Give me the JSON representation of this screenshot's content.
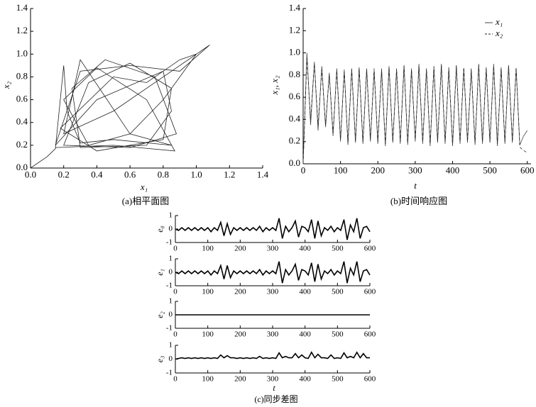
{
  "chart_data": [
    {
      "type": "line",
      "title": "(a)相平面图",
      "xlabel": "x₁",
      "ylabel": "x₂",
      "xlim": [
        0,
        1.4
      ],
      "ylim": [
        0,
        1.4
      ],
      "xticks": [
        {
          "value": 0,
          "label": "0.0"
        },
        0.2,
        0.4,
        0.6,
        0.8,
        {
          "value": 1,
          "label": "1.0"
        },
        1.2,
        1.4
      ],
      "yticks": [
        {
          "value": 0,
          "label": "0.0"
        },
        0.2,
        0.4,
        0.6,
        0.8,
        {
          "value": 1,
          "label": "1.0"
        },
        1.2,
        1.4
      ],
      "color": "#222",
      "x": [
        0,
        0.1,
        0.15,
        0.2,
        0.22,
        0.3,
        0.5,
        0.85,
        0.6,
        0.3,
        0.2,
        0.5,
        0.9,
        1.08,
        0.9,
        0.6,
        0.3,
        0.15,
        0.4,
        0.8,
        0.85,
        0.7,
        0.3,
        0.25,
        0.45,
        0.75,
        0.88,
        0.6,
        0.2,
        0.35,
        0.6,
        0.85,
        0.8,
        0.4,
        0.18,
        0.5,
        0.7,
        0.9,
        1.0,
        0.8,
        0.6,
        0.35,
        0.2,
        0.4,
        0.7,
        0.87,
        0.5,
        0.15
      ],
      "values": [
        0,
        0.1,
        0.17,
        0.9,
        0.5,
        0.22,
        0.25,
        0.2,
        0.3,
        0.95,
        0.3,
        0.5,
        0.9,
        1.08,
        0.85,
        0.9,
        0.85,
        0.2,
        0.6,
        0.85,
        0.5,
        0.2,
        0.18,
        0.7,
        0.95,
        0.8,
        0.3,
        0.18,
        0.2,
        0.75,
        0.92,
        0.7,
        0.25,
        0.15,
        0.35,
        0.8,
        0.75,
        0.95,
        1.0,
        0.6,
        0.3,
        0.2,
        0.6,
        0.88,
        0.6,
        0.15,
        0.2,
        0.18
      ]
    },
    {
      "type": "line",
      "title": "(b)时间响应图",
      "xlabel": "t",
      "ylabel": "x₁, x₂",
      "xlim": [
        0,
        610
      ],
      "ylim": [
        0,
        1.4
      ],
      "xticks": [
        0,
        100,
        200,
        300,
        400,
        500,
        600
      ],
      "yticks": [
        {
          "value": 0,
          "label": "0.0"
        },
        0.2,
        0.4,
        0.6,
        0.8,
        {
          "value": 1,
          "label": "1.0"
        },
        1.2,
        1.4
      ],
      "x": [
        0,
        10,
        20,
        30,
        40,
        50,
        60,
        70,
        80,
        90,
        100,
        110,
        120,
        130,
        140,
        150,
        160,
        170,
        180,
        190,
        200,
        210,
        220,
        230,
        240,
        250,
        260,
        270,
        280,
        290,
        300,
        310,
        320,
        330,
        340,
        350,
        360,
        370,
        380,
        390,
        400,
        410,
        420,
        430,
        440,
        450,
        460,
        470,
        480,
        490,
        500,
        510,
        520,
        530,
        540,
        550,
        560,
        570,
        580,
        590,
        600
      ],
      "series": [
        {
          "name": "x₁",
          "color": "#444",
          "linestyle": "solid",
          "values": [
            0,
            1.0,
            0.35,
            0.92,
            0.3,
            0.88,
            0.33,
            0.82,
            0.25,
            0.86,
            0.2,
            0.85,
            0.17,
            0.86,
            0.19,
            0.87,
            0.18,
            0.86,
            0.2,
            0.84,
            0.18,
            0.86,
            0.16,
            0.88,
            0.19,
            0.85,
            0.18,
            0.89,
            0.17,
            0.86,
            0.2,
            0.9,
            0.18,
            0.85,
            0.16,
            0.87,
            0.19,
            0.9,
            0.18,
            0.86,
            0.16,
            0.89,
            0.18,
            0.86,
            0.19,
            0.85,
            0.17,
            0.9,
            0.18,
            0.86,
            0.19,
            0.9,
            0.16,
            0.87,
            0.18,
            0.89,
            0.19,
            0.86,
            0.17,
            0.25,
            0.3
          ]
        },
        {
          "name": "x₂",
          "color": "#222",
          "linestyle": "dashed",
          "values": [
            0,
            0.95,
            0.4,
            0.9,
            0.35,
            0.85,
            0.35,
            0.8,
            0.28,
            0.84,
            0.22,
            0.83,
            0.19,
            0.85,
            0.2,
            0.86,
            0.2,
            0.85,
            0.22,
            0.86,
            0.2,
            0.84,
            0.18,
            0.87,
            0.2,
            0.86,
            0.2,
            0.88,
            0.19,
            0.85,
            0.22,
            0.88,
            0.2,
            0.86,
            0.18,
            0.88,
            0.2,
            0.89,
            0.2,
            0.87,
            0.18,
            0.88,
            0.2,
            0.87,
            0.2,
            0.86,
            0.19,
            0.89,
            0.2,
            0.87,
            0.2,
            0.88,
            0.18,
            0.86,
            0.2,
            0.88,
            0.2,
            0.87,
            0.15,
            0.12,
            0.1
          ]
        }
      ]
    },
    {
      "type": "line",
      "title": "(c)同步差图",
      "xlabel": "t",
      "xlim": [
        0,
        600
      ],
      "xticks": [
        0,
        100,
        200,
        300,
        400,
        500,
        600
      ],
      "x": [
        0,
        10,
        20,
        30,
        40,
        50,
        60,
        70,
        80,
        90,
        100,
        110,
        120,
        130,
        140,
        150,
        160,
        170,
        180,
        190,
        200,
        210,
        220,
        230,
        240,
        250,
        260,
        270,
        280,
        290,
        300,
        310,
        320,
        330,
        340,
        350,
        360,
        370,
        380,
        390,
        400,
        410,
        420,
        430,
        440,
        450,
        460,
        470,
        480,
        490,
        500,
        510,
        520,
        530,
        540,
        550,
        560,
        570,
        580,
        590,
        600
      ],
      "subplots": [
        {
          "ylabel": "e₀",
          "ylim": [
            -1,
            1
          ],
          "yticks": [
            -1,
            0,
            1
          ],
          "color": "#000",
          "values": [
            0,
            -0.1,
            0.1,
            -0.1,
            0.1,
            -0.1,
            0.1,
            -0.1,
            0.1,
            -0.1,
            0.1,
            -0.2,
            0.1,
            -0.1,
            0.5,
            -0.5,
            0.4,
            -0.4,
            0.1,
            -0.1,
            0.1,
            -0.1,
            0.1,
            -0.1,
            0.1,
            -0.1,
            0.2,
            -0.2,
            0.1,
            -0.1,
            0.1,
            -0.1,
            0.8,
            -0.7,
            0.2,
            -0.2,
            0.1,
            0.6,
            -0.6,
            0.2,
            0.1,
            -0.2,
            0.7,
            -0.7,
            0.6,
            -0.5,
            0.1,
            -0.1,
            0.2,
            -0.2,
            0.1,
            -0.1,
            0.7,
            -0.8,
            0.3,
            -0.2,
            0.8,
            -0.7,
            0.1,
            0.2,
            -0.2
          ]
        },
        {
          "ylabel": "e₁",
          "ylim": [
            -1,
            1
          ],
          "yticks": [
            -1,
            0,
            1
          ],
          "color": "#000",
          "values": [
            0,
            -0.1,
            0.1,
            -0.1,
            0.1,
            -0.1,
            0.1,
            -0.1,
            0.1,
            -0.1,
            0.1,
            -0.2,
            0.1,
            -0.1,
            0.5,
            -0.5,
            0.5,
            -0.4,
            0.1,
            -0.1,
            0.1,
            -0.1,
            0.1,
            -0.1,
            0.1,
            -0.1,
            0.2,
            -0.2,
            0.1,
            -0.1,
            0.1,
            -0.1,
            0.8,
            -0.8,
            0.2,
            -0.2,
            0.1,
            0.6,
            -0.6,
            0.2,
            0.1,
            -0.2,
            0.7,
            -0.7,
            0.6,
            -0.5,
            0.1,
            -0.1,
            0.2,
            -0.2,
            0.1,
            -0.1,
            0.8,
            -0.8,
            0.3,
            -0.2,
            0.8,
            -0.7,
            0.1,
            0.2,
            -0.2
          ]
        },
        {
          "ylabel": "e₂",
          "ylim": [
            -1,
            1
          ],
          "yticks": [
            -1,
            0,
            1
          ],
          "color": "#000",
          "values": [
            0,
            0,
            0,
            0,
            0,
            0,
            0,
            0,
            0,
            0,
            0,
            0,
            0,
            0,
            0,
            0,
            0,
            0,
            0,
            0,
            0,
            0,
            0,
            0,
            0,
            0,
            0,
            0,
            0,
            0,
            0,
            0,
            0,
            0,
            0,
            0,
            0,
            0,
            0,
            0,
            0,
            0,
            0,
            0,
            0,
            0,
            0,
            0,
            0,
            0,
            0,
            0,
            0,
            0,
            0,
            0,
            0,
            0,
            0,
            0,
            0
          ]
        },
        {
          "ylabel": "e₃",
          "ylim": [
            -1,
            1
          ],
          "yticks": [
            -1,
            0,
            1
          ],
          "color": "#000",
          "values": [
            0,
            0.05,
            0.1,
            0.05,
            0.1,
            0.05,
            0.1,
            0.05,
            0.1,
            0.05,
            0.1,
            0.05,
            0.1,
            0.05,
            0.3,
            0.1,
            0.25,
            0.1,
            0.1,
            0.05,
            0.1,
            0.05,
            0.1,
            0.05,
            0.1,
            0.05,
            0.2,
            0.05,
            0.1,
            0.05,
            0.1,
            0.05,
            0.45,
            0.1,
            0.2,
            0.1,
            0.1,
            0.4,
            0.1,
            0.3,
            0.1,
            0.05,
            0.5,
            0.1,
            0.35,
            0.1,
            0.1,
            0.05,
            0.3,
            0.05,
            0.1,
            0.05,
            0.45,
            0.1,
            0.2,
            0.1,
            0.5,
            0.1,
            0.4,
            0.1,
            0.1
          ]
        }
      ]
    }
  ]
}
